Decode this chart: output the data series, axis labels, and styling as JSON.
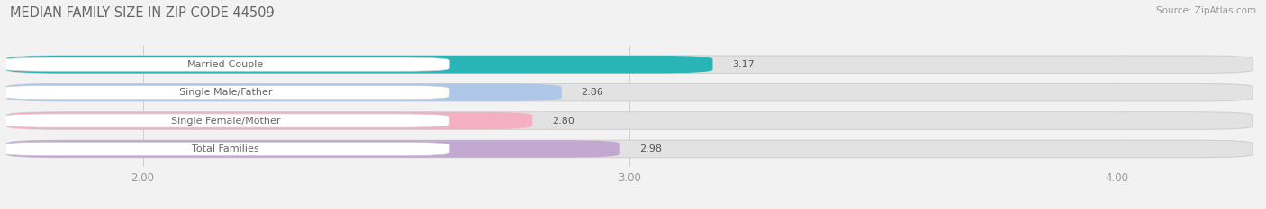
{
  "title": "MEDIAN FAMILY SIZE IN ZIP CODE 44509",
  "source": "Source: ZipAtlas.com",
  "categories": [
    "Married-Couple",
    "Single Male/Father",
    "Single Female/Mother",
    "Total Families"
  ],
  "values": [
    3.17,
    2.86,
    2.8,
    2.98
  ],
  "bar_colors": [
    "#29b5b5",
    "#aec6e8",
    "#f4afc3",
    "#c3a8d1"
  ],
  "xlim_left": 1.72,
  "xlim_right": 4.28,
  "xticks": [
    2.0,
    3.0,
    4.0
  ],
  "xtick_labels": [
    "2.00",
    "3.00",
    "4.00"
  ],
  "background_color": "#f2f2f2",
  "bar_bg_color": "#e8e8e8",
  "bar_full_bg_color": "#e2e2e2",
  "title_fontsize": 10.5,
  "source_fontsize": 7.5,
  "tick_fontsize": 8.5,
  "label_fontsize": 8,
  "value_fontsize": 8,
  "bar_height": 0.62,
  "title_color": "#666666",
  "tick_color": "#999999",
  "value_color": "#555555",
  "label_text_color": "#666666",
  "grid_color": "#cccccc"
}
